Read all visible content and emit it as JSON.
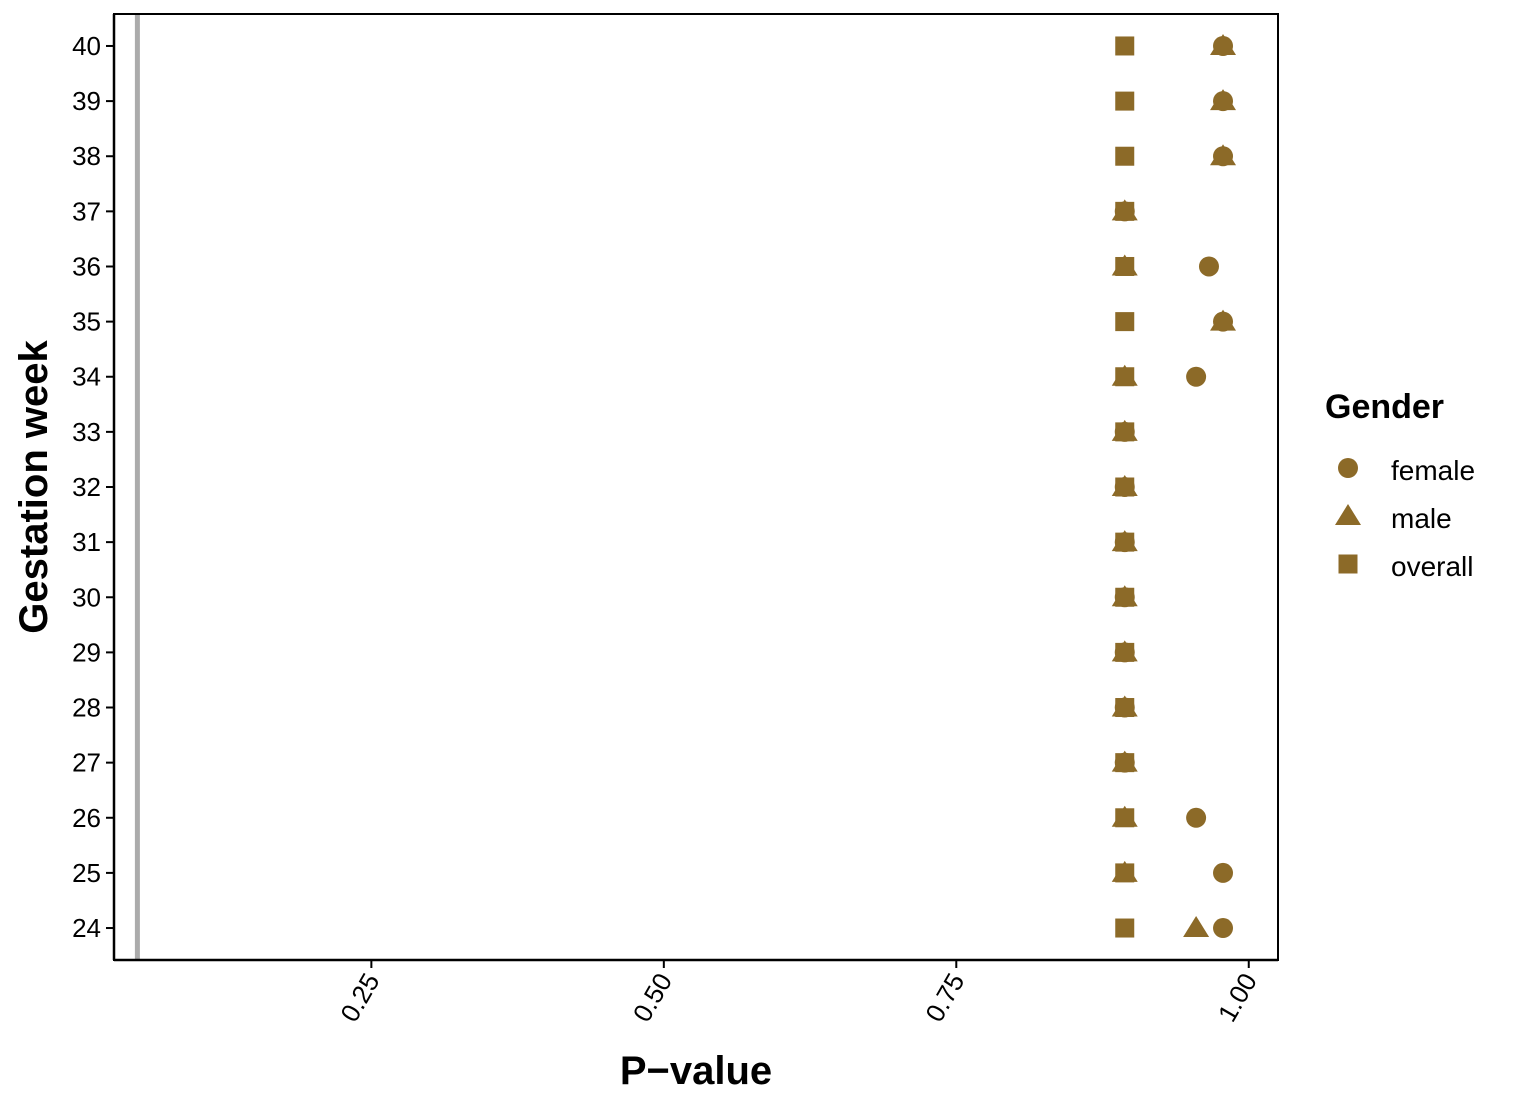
{
  "chart_data": {
    "type": "scatter",
    "xlabel": "P−value",
    "ylabel": "Gestation week",
    "xlim": [
      0.03,
      1.025
    ],
    "ylim": [
      23.42,
      40.58
    ],
    "x_ticks": [
      0.25,
      0.5,
      0.75,
      1.0
    ],
    "x_tick_labels": [
      "0.25",
      "0.50",
      "0.75",
      "1.00"
    ],
    "y_ticks": [
      24,
      25,
      26,
      27,
      28,
      29,
      30,
      31,
      32,
      33,
      34,
      35,
      36,
      37,
      38,
      39,
      40
    ],
    "reference_line_x": 0.05,
    "marker_color": "#8C6A28",
    "reference_line_color": "#ABABAB",
    "grid": false,
    "legend": {
      "title": "Gender",
      "position": "right",
      "entries": [
        {
          "label": "female",
          "shape": "circle"
        },
        {
          "label": "male",
          "shape": "triangle"
        },
        {
          "label": "overall",
          "shape": "square"
        }
      ]
    },
    "series": [
      {
        "name": "female",
        "shape": "circle",
        "points": [
          {
            "week": 24,
            "p": 0.978
          },
          {
            "week": 25,
            "p": 0.978
          },
          {
            "week": 26,
            "p": 0.955
          },
          {
            "week": 27,
            "p": 0.894
          },
          {
            "week": 28,
            "p": 0.894
          },
          {
            "week": 29,
            "p": 0.894
          },
          {
            "week": 30,
            "p": 0.894
          },
          {
            "week": 31,
            "p": 0.894
          },
          {
            "week": 32,
            "p": 0.894
          },
          {
            "week": 33,
            "p": 0.894
          },
          {
            "week": 34,
            "p": 0.955
          },
          {
            "week": 35,
            "p": 0.978
          },
          {
            "week": 36,
            "p": 0.966
          },
          {
            "week": 37,
            "p": 0.894
          },
          {
            "week": 38,
            "p": 0.978
          },
          {
            "week": 39,
            "p": 0.978
          },
          {
            "week": 40,
            "p": 0.978
          }
        ]
      },
      {
        "name": "male",
        "shape": "triangle",
        "points": [
          {
            "week": 24,
            "p": 0.955
          },
          {
            "week": 25,
            "p": 0.894
          },
          {
            "week": 26,
            "p": 0.894
          },
          {
            "week": 27,
            "p": 0.894
          },
          {
            "week": 28,
            "p": 0.894
          },
          {
            "week": 29,
            "p": 0.894
          },
          {
            "week": 30,
            "p": 0.894
          },
          {
            "week": 31,
            "p": 0.894
          },
          {
            "week": 32,
            "p": 0.894
          },
          {
            "week": 33,
            "p": 0.894
          },
          {
            "week": 34,
            "p": 0.894
          },
          {
            "week": 35,
            "p": 0.978
          },
          {
            "week": 36,
            "p": 0.894
          },
          {
            "week": 37,
            "p": 0.894
          },
          {
            "week": 38,
            "p": 0.978
          },
          {
            "week": 39,
            "p": 0.978
          },
          {
            "week": 40,
            "p": 0.978
          }
        ]
      },
      {
        "name": "overall",
        "shape": "square",
        "points": [
          {
            "week": 24,
            "p": 0.894
          },
          {
            "week": 25,
            "p": 0.894
          },
          {
            "week": 26,
            "p": 0.894
          },
          {
            "week": 27,
            "p": 0.894
          },
          {
            "week": 28,
            "p": 0.894
          },
          {
            "week": 29,
            "p": 0.894
          },
          {
            "week": 30,
            "p": 0.894
          },
          {
            "week": 31,
            "p": 0.894
          },
          {
            "week": 32,
            "p": 0.894
          },
          {
            "week": 33,
            "p": 0.894
          },
          {
            "week": 34,
            "p": 0.894
          },
          {
            "week": 35,
            "p": 0.894
          },
          {
            "week": 36,
            "p": 0.894
          },
          {
            "week": 37,
            "p": 0.894
          },
          {
            "week": 38,
            "p": 0.894
          },
          {
            "week": 39,
            "p": 0.894
          },
          {
            "week": 40,
            "p": 0.894
          }
        ]
      }
    ]
  }
}
